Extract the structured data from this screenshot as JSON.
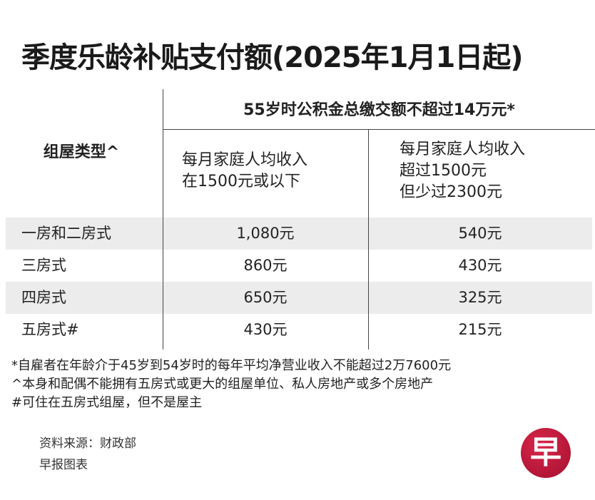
{
  "title": "季度乐龄补贴支付额(2025年1月1日起)",
  "table": {
    "top_header": "55岁时公积金总缴交额不超过14万元*",
    "type_header": "组屋类型^",
    "col1_header": [
      "每月家庭人均收入",
      "在1500元或以下"
    ],
    "col2_header": [
      "每月家庭人均收入",
      "超过1500元",
      "但少过2300元"
    ],
    "rows": [
      {
        "type": "一房和二房式",
        "col1": "1,080元",
        "col2": "540元"
      },
      {
        "type": "三房式",
        "col1": "860元",
        "col2": "430元"
      },
      {
        "type": "四房式",
        "col1": "650元",
        "col2": "325元"
      },
      {
        "type": "五房式#",
        "col1": "430元",
        "col2": "215元"
      }
    ]
  },
  "footnotes": [
    "*自雇者在年龄介于45岁到54岁时的每年平均净营业收入不能超过2万7600元",
    "^本身和配偶不能拥有五房式或更大的组屋单位、私人房地产或多个房地产",
    "#可住在五房式组屋，但不是屋主"
  ],
  "source": "资料来源：财政部",
  "credit": "早报图表",
  "logo": {
    "text": "早",
    "color": "#b81838"
  }
}
